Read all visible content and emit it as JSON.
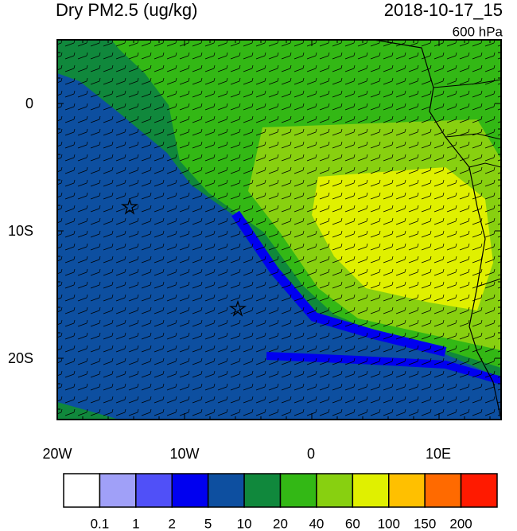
{
  "header": {
    "title": "Dry PM2.5 (ug/kg)",
    "time": "2018-10-17_15",
    "level": "600 hPa"
  },
  "map": {
    "lat_labels": [
      "0",
      "10S",
      "20S"
    ],
    "lon_labels": [
      "20W",
      "10W",
      "0",
      "10E"
    ]
  },
  "colorbar": {
    "colors": [
      "#ffffff",
      "#a0a0f8",
      "#5050f8",
      "#0000f0",
      "#0d4fa0",
      "#10883c",
      "#33b815",
      "#88d010",
      "#e0f000",
      "#ffc000",
      "#ff6a00",
      "#ff1a00"
    ],
    "labels": [
      "0.1",
      "1",
      "2",
      "5",
      "10",
      "20",
      "40",
      "60",
      "100",
      "150",
      "200"
    ]
  }
}
